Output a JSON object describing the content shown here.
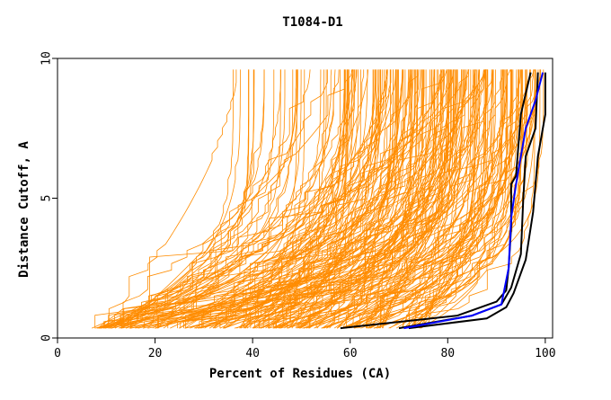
{
  "chart_data": {
    "type": "line",
    "title": "T1084-D1",
    "xlabel": "Percent of Residues (CA)",
    "ylabel": "Distance Cutoff, A",
    "xlim": [
      0,
      101.5
    ],
    "ylim": [
      0,
      10
    ],
    "x_ticks": [
      0,
      20,
      40,
      60,
      80,
      100
    ],
    "y_ticks": [
      0,
      5,
      10
    ],
    "colors": {
      "background_models": "#ff8c00",
      "highlight_1": "#000000",
      "highlight_2": "#0000ff"
    },
    "series": [
      {
        "color": "#000000",
        "points": [
          [
            58,
            0.35
          ],
          [
            82,
            0.8
          ],
          [
            90,
            1.3
          ],
          [
            92,
            1.7
          ],
          [
            92.5,
            2.5
          ],
          [
            93,
            4.0
          ],
          [
            93,
            5.5
          ],
          [
            94,
            5.8
          ],
          [
            95,
            8.0
          ],
          [
            97,
            9.5
          ]
        ]
      },
      {
        "color": "#000000",
        "points": [
          [
            70,
            0.35
          ],
          [
            85,
            0.8
          ],
          [
            91,
            1.2
          ],
          [
            93,
            1.8
          ],
          [
            95,
            3.0
          ],
          [
            95.5,
            5.0
          ],
          [
            96,
            6.5
          ],
          [
            98,
            7.5
          ],
          [
            98.5,
            9.5
          ]
        ]
      },
      {
        "color": "#000000",
        "points": [
          [
            72,
            0.35
          ],
          [
            88,
            0.7
          ],
          [
            92,
            1.1
          ],
          [
            93.5,
            1.6
          ],
          [
            96,
            2.8
          ],
          [
            97.5,
            4.5
          ],
          [
            98.5,
            6.5
          ],
          [
            100,
            8.0
          ],
          [
            100,
            9.5
          ]
        ]
      },
      {
        "color": "#0000ff",
        "points": [
          [
            71,
            0.35
          ],
          [
            85,
            0.8
          ],
          [
            91,
            1.2
          ],
          [
            92.5,
            2.5
          ],
          [
            93,
            4.3
          ],
          [
            94,
            5.5
          ],
          [
            96,
            7.5
          ],
          [
            98,
            8.5
          ],
          [
            99.5,
            9.5
          ]
        ]
      }
    ],
    "background": {
      "count": 230,
      "x_start_range": [
        6.5,
        75
      ],
      "x_end_range": [
        38,
        100
      ],
      "y_start": 0.35,
      "y_end": 9.6
    }
  }
}
